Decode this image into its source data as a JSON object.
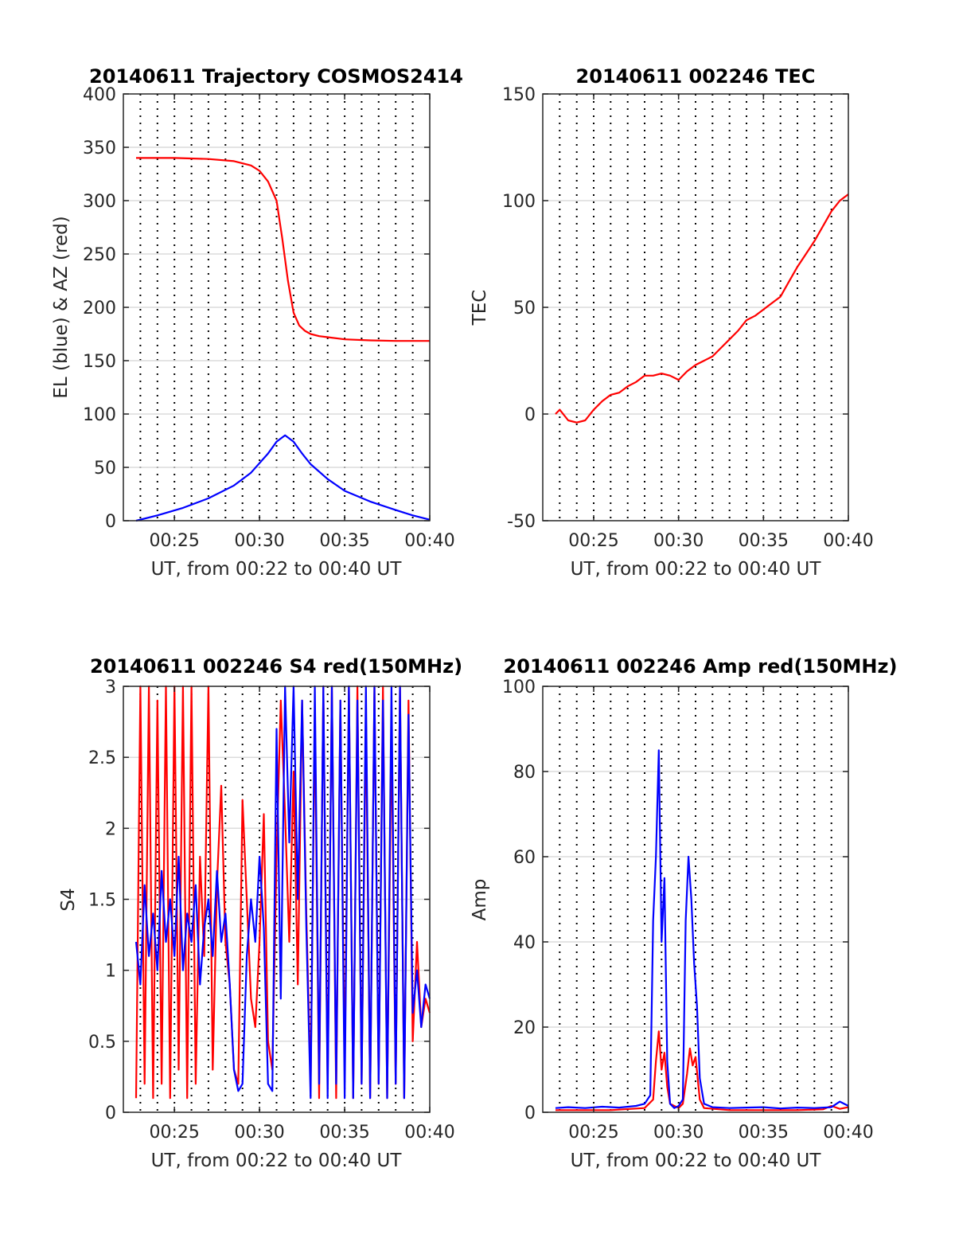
{
  "chart_data": [
    {
      "id": "trajectory",
      "type": "line",
      "title": "20140611 Trajectory COSMOS2414",
      "xlabel": "UT, from 00:22 to 00:40 UT",
      "ylabel": "EL (blue) & AZ (red)",
      "xlim": [
        "00:22",
        "00:40"
      ],
      "ylim": [
        0,
        400
      ],
      "x_ticks": [
        "00:25",
        "00:30",
        "00:35",
        "00:40"
      ],
      "y_ticks": [
        "0",
        "50",
        "100",
        "150",
        "200",
        "250",
        "300",
        "350",
        "400"
      ],
      "grid": true,
      "series": [
        {
          "color": "#ff0000",
          "x": [
            "00:22:45",
            "00:25:00",
            "00:27:00",
            "00:28:30",
            "00:29:30",
            "00:30:00",
            "00:30:30",
            "00:31:00",
            "00:31:20",
            "00:31:40",
            "00:32:00",
            "00:32:20",
            "00:32:40",
            "00:33:00",
            "00:33:30",
            "00:34:00",
            "00:35:00",
            "00:36:30",
            "00:38:00",
            "00:40:00"
          ],
          "y": [
            340,
            340,
            339,
            337,
            333,
            328,
            318,
            300,
            265,
            225,
            195,
            183,
            178,
            175,
            173,
            172,
            170,
            169,
            168.5,
            168.5
          ]
        },
        {
          "color": "#0000ff",
          "x": [
            "00:22:45",
            "00:24:00",
            "00:25:30",
            "00:27:00",
            "00:28:30",
            "00:29:30",
            "00:30:30",
            "00:31:00",
            "00:31:30",
            "00:32:00",
            "00:32:30",
            "00:33:00",
            "00:34:00",
            "00:35:00",
            "00:36:30",
            "00:38:00",
            "00:39:00",
            "00:40:00"
          ],
          "y": [
            0,
            5,
            12,
            21,
            33,
            45,
            63,
            74,
            80,
            74,
            63,
            53,
            39,
            28,
            18,
            10,
            5,
            1
          ]
        }
      ]
    },
    {
      "id": "tec",
      "type": "line",
      "title": "20140611 002246 TEC",
      "xlabel": "UT, from 00:22 to 00:40 UT",
      "ylabel": "TEC",
      "xlim": [
        "00:22",
        "00:40"
      ],
      "ylim": [
        -50,
        150
      ],
      "x_ticks": [
        "00:25",
        "00:30",
        "00:35",
        "00:40"
      ],
      "y_ticks": [
        "-50",
        "0",
        "50",
        "100",
        "150"
      ],
      "grid": true,
      "series": [
        {
          "color": "#ff0000",
          "x": [
            "00:22:45",
            "00:23:00",
            "00:23:30",
            "00:24:00",
            "00:24:30",
            "00:25:00",
            "00:25:30",
            "00:26:00",
            "00:26:30",
            "00:27:00",
            "00:27:30",
            "00:28:00",
            "00:28:30",
            "00:29:00",
            "00:29:30",
            "00:30:00",
            "00:30:30",
            "00:31:00",
            "00:31:30",
            "00:32:00",
            "00:32:30",
            "00:33:00",
            "00:33:30",
            "00:34:00",
            "00:34:30",
            "00:35:00",
            "00:35:30",
            "00:36:00",
            "00:36:30",
            "00:37:00",
            "00:37:30",
            "00:38:00",
            "00:38:30",
            "00:39:00",
            "00:39:30",
            "00:40:00"
          ],
          "y": [
            0,
            2,
            -3,
            -4,
            -3,
            2,
            6,
            9,
            10,
            13,
            15,
            18,
            18,
            19,
            18,
            16,
            20,
            23,
            25,
            27,
            31,
            35,
            39,
            44,
            46,
            49,
            52,
            55,
            62,
            69,
            75,
            81,
            88,
            95,
            100,
            103
          ]
        }
      ]
    },
    {
      "id": "s4",
      "type": "line",
      "title": "20140611 002246 S4 red(150MHz)",
      "xlabel": "UT, from 00:22 to 00:40 UT",
      "ylabel": "S4",
      "xlim": [
        "00:22",
        "00:40"
      ],
      "ylim": [
        0,
        3
      ],
      "x_ticks": [
        "00:25",
        "00:30",
        "00:35",
        "00:40"
      ],
      "y_ticks": [
        "0",
        "0.5",
        "1",
        "1.5",
        "2",
        "2.5",
        "3"
      ],
      "grid": true,
      "series": [
        {
          "color": "#ff0000",
          "x": [
            "00:22:45",
            "00:23:00",
            "00:23:15",
            "00:23:30",
            "00:23:45",
            "00:24:00",
            "00:24:15",
            "00:24:30",
            "00:24:45",
            "00:25:00",
            "00:25:15",
            "00:25:30",
            "00:25:45",
            "00:26:00",
            "00:26:15",
            "00:26:30",
            "00:26:45",
            "00:27:00",
            "00:27:15",
            "00:27:30",
            "00:27:45",
            "00:28:00",
            "00:28:15",
            "00:28:30",
            "00:28:45",
            "00:29:00",
            "00:29:15",
            "00:29:30",
            "00:29:45",
            "00:30:00",
            "00:30:15",
            "00:30:30",
            "00:30:45",
            "00:31:00",
            "00:31:15",
            "00:31:30",
            "00:31:45",
            "00:32:00",
            "00:32:15",
            "00:32:30",
            "00:32:45",
            "00:33:00",
            "00:33:15",
            "00:33:30",
            "00:33:45",
            "00:34:00",
            "00:34:15",
            "00:34:30",
            "00:34:45",
            "00:35:00",
            "00:35:15",
            "00:35:30",
            "00:35:45",
            "00:36:00",
            "00:36:15",
            "00:36:30",
            "00:36:45",
            "00:37:00",
            "00:37:15",
            "00:37:30",
            "00:37:45",
            "00:38:00",
            "00:38:15",
            "00:38:30",
            "00:38:45",
            "00:39:00",
            "00:39:15",
            "00:39:30",
            "00:39:45",
            "00:40:00"
          ],
          "y": [
            0.1,
            3.0,
            0.2,
            3.0,
            0.1,
            2.9,
            0.2,
            3.0,
            0.1,
            3.0,
            0.3,
            3.0,
            0.1,
            3.0,
            0.2,
            1.8,
            1.1,
            3.0,
            0.3,
            1.6,
            2.3,
            1.2,
            0.9,
            0.3,
            0.2,
            2.2,
            1.5,
            0.8,
            0.6,
            1.2,
            2.1,
            0.5,
            0.3,
            1.8,
            2.9,
            2.1,
            1.2,
            2.4,
            0.9,
            2.9,
            1.4,
            0.2,
            2.8,
            0.1,
            3.0,
            0.2,
            3.0,
            0.1,
            2.9,
            0.3,
            3.0,
            0.1,
            3.0,
            0.2,
            2.8,
            0.1,
            3.0,
            0.2,
            3.0,
            0.1,
            2.7,
            0.2,
            3.0,
            0.1,
            2.9,
            0.5,
            1.2,
            0.6,
            0.8,
            0.7
          ]
        },
        {
          "color": "#0000ff",
          "x": [
            "00:22:45",
            "00:23:00",
            "00:23:15",
            "00:23:30",
            "00:23:45",
            "00:24:00",
            "00:24:15",
            "00:24:30",
            "00:24:45",
            "00:25:00",
            "00:25:15",
            "00:25:30",
            "00:25:45",
            "00:26:00",
            "00:26:15",
            "00:26:30",
            "00:26:45",
            "00:27:00",
            "00:27:15",
            "00:27:30",
            "00:27:45",
            "00:28:00",
            "00:28:15",
            "00:28:30",
            "00:28:45",
            "00:29:00",
            "00:29:15",
            "00:29:30",
            "00:29:45",
            "00:30:00",
            "00:30:15",
            "00:30:30",
            "00:30:45",
            "00:31:00",
            "00:31:15",
            "00:31:30",
            "00:31:45",
            "00:32:00",
            "00:32:15",
            "00:32:30",
            "00:32:45",
            "00:33:00",
            "00:33:15",
            "00:33:30",
            "00:33:45",
            "00:34:00",
            "00:34:15",
            "00:34:30",
            "00:34:45",
            "00:35:00",
            "00:35:15",
            "00:35:30",
            "00:35:45",
            "00:36:00",
            "00:36:15",
            "00:36:30",
            "00:36:45",
            "00:37:00",
            "00:37:15",
            "00:37:30",
            "00:37:45",
            "00:38:00",
            "00:38:15",
            "00:38:30",
            "00:38:45",
            "00:39:00",
            "00:39:15",
            "00:39:30",
            "00:39:45",
            "00:40:00"
          ],
          "y": [
            1.2,
            0.9,
            1.6,
            1.1,
            1.4,
            1.0,
            1.7,
            1.2,
            1.5,
            1.1,
            1.8,
            1.0,
            1.4,
            1.2,
            1.6,
            0.9,
            1.3,
            1.5,
            1.1,
            1.7,
            1.2,
            1.4,
            0.9,
            0.3,
            0.15,
            0.2,
            1.1,
            1.5,
            1.2,
            1.8,
            1.3,
            0.2,
            0.15,
            2.7,
            0.8,
            3.0,
            1.9,
            3.0,
            1.5,
            2.9,
            1.3,
            0.1,
            3.0,
            0.2,
            3.0,
            0.1,
            3.0,
            0.2,
            2.9,
            0.1,
            3.0,
            0.1,
            2.9,
            0.2,
            3.0,
            0.1,
            3.0,
            0.2,
            2.9,
            0.1,
            3.0,
            0.2,
            3.0,
            0.1,
            2.8,
            0.7,
            1.0,
            0.6,
            0.9,
            0.8
          ]
        }
      ]
    },
    {
      "id": "amp",
      "type": "line",
      "title": "20140611 002246 Amp red(150MHz)",
      "xlabel": "UT, from 00:22 to 00:40 UT",
      "ylabel": "Amp",
      "xlim": [
        "00:22",
        "00:40"
      ],
      "ylim": [
        0,
        100
      ],
      "x_ticks": [
        "00:25",
        "00:30",
        "00:35",
        "00:40"
      ],
      "y_ticks": [
        "0",
        "20",
        "40",
        "60",
        "80",
        "100"
      ],
      "grid": true,
      "series": [
        {
          "color": "#ff0000",
          "x": [
            "00:22:45",
            "00:24:00",
            "00:26:00",
            "00:28:00",
            "00:28:30",
            "00:28:40",
            "00:28:50",
            "00:29:00",
            "00:29:10",
            "00:29:20",
            "00:29:30",
            "00:30:00",
            "00:30:15",
            "00:30:30",
            "00:30:40",
            "00:30:50",
            "00:31:00",
            "00:31:15",
            "00:31:30",
            "00:33:00",
            "00:35:00",
            "00:37:00",
            "00:38:30",
            "00:39:00",
            "00:39:30",
            "00:40:00"
          ],
          "y": [
            0.5,
            0.5,
            0.5,
            1,
            3,
            12,
            19,
            10,
            14,
            6,
            2,
            1,
            2,
            9,
            15,
            11,
            13,
            3,
            1,
            0.5,
            0.5,
            0.5,
            0.7,
            1.5,
            0.8,
            1.2
          ]
        },
        {
          "color": "#0000ff",
          "x": [
            "00:22:45",
            "00:23:30",
            "00:24:30",
            "00:25:30",
            "00:26:30",
            "00:27:30",
            "00:28:00",
            "00:28:20",
            "00:28:30",
            "00:28:40",
            "00:28:50",
            "00:29:00",
            "00:29:10",
            "00:29:20",
            "00:29:30",
            "00:29:45",
            "00:30:00",
            "00:30:15",
            "00:30:25",
            "00:30:35",
            "00:30:45",
            "00:30:55",
            "00:31:05",
            "00:31:15",
            "00:31:30",
            "00:32:00",
            "00:33:00",
            "00:34:00",
            "00:35:00",
            "00:36:00",
            "00:37:00",
            "00:38:00",
            "00:39:00",
            "00:39:30",
            "00:40:00"
          ],
          "y": [
            1,
            1.2,
            1.0,
            1.3,
            1.1,
            1.5,
            2,
            4,
            45,
            60,
            85,
            40,
            55,
            12,
            2,
            1,
            1.5,
            3,
            45,
            60,
            50,
            35,
            25,
            8,
            2,
            1.2,
            1.0,
            1.1,
            1.2,
            0.9,
            1.1,
            1.0,
            1.2,
            2.5,
            1.5
          ]
        }
      ]
    }
  ]
}
